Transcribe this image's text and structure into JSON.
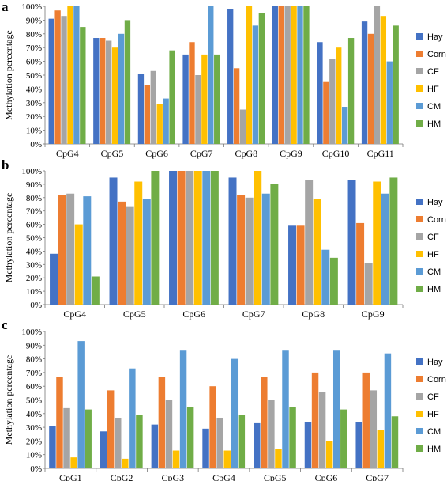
{
  "colors": {
    "Hay": "#4472c4",
    "Corn": "#ed7d31",
    "CF": "#a5a5a5",
    "HF": "#ffc000",
    "CM": "#5b9bd5",
    "HM": "#70ad47"
  },
  "chart_data": [
    {
      "type": "bar",
      "panel_label": "a",
      "ylabel": "Methylation percentage",
      "ylim": [
        0,
        100
      ],
      "yticks": [
        "0%",
        "10%",
        "20%",
        "30%",
        "40%",
        "50%",
        "60%",
        "70%",
        "80%",
        "90%",
        "100%"
      ],
      "categories": [
        "CpG4",
        "CpG5",
        "CpG6",
        "CpG7",
        "CpG8",
        "CpG9",
        "CpG10",
        "CpG11"
      ],
      "legend": {
        "position": "right"
      },
      "series": [
        {
          "name": "Hay",
          "values": [
            91,
            77,
            51,
            65,
            98,
            100,
            74,
            89
          ]
        },
        {
          "name": "Corn",
          "values": [
            97,
            77,
            43,
            74,
            55,
            100,
            45,
            80
          ]
        },
        {
          "name": "CF",
          "values": [
            93,
            75,
            53,
            50,
            25,
            100,
            62,
            100
          ]
        },
        {
          "name": "HF",
          "values": [
            100,
            70,
            29,
            65,
            100,
            100,
            70,
            93
          ]
        },
        {
          "name": "CM",
          "values": [
            100,
            80,
            33,
            100,
            86,
            100,
            27,
            60
          ]
        },
        {
          "name": "HM",
          "values": [
            85,
            90,
            68,
            65,
            95,
            100,
            77,
            86
          ]
        }
      ]
    },
    {
      "type": "bar",
      "panel_label": "b",
      "ylabel": "Methylation percentage",
      "ylim": [
        0,
        100
      ],
      "yticks": [
        "0%",
        "10%",
        "20%",
        "30%",
        "40%",
        "50%",
        "60%",
        "70%",
        "80%",
        "90%",
        "100%"
      ],
      "categories": [
        "CpG4",
        "CpG5",
        "CpG6",
        "CpG7",
        "CpG8",
        "CpG9"
      ],
      "legend": {
        "position": "right"
      },
      "series": [
        {
          "name": "Hay",
          "values": [
            38,
            95,
            100,
            95,
            59,
            93
          ]
        },
        {
          "name": "Corn",
          "values": [
            82,
            77,
            100,
            82,
            59,
            61
          ]
        },
        {
          "name": "CF",
          "values": [
            83,
            73,
            100,
            80,
            93,
            31
          ]
        },
        {
          "name": "HF",
          "values": [
            60,
            92,
            100,
            100,
            79,
            92
          ]
        },
        {
          "name": "CM",
          "values": [
            81,
            79,
            100,
            83,
            41,
            83
          ]
        },
        {
          "name": "HM",
          "values": [
            21,
            100,
            100,
            90,
            35,
            95
          ]
        }
      ]
    },
    {
      "type": "bar",
      "panel_label": "c",
      "ylabel": "Methylation percentage",
      "ylim": [
        0,
        100
      ],
      "yticks": [
        "0%",
        "10%",
        "20%",
        "30%",
        "40%",
        "50%",
        "60%",
        "70%",
        "80%",
        "90%",
        "100%"
      ],
      "categories": [
        "CpG1",
        "CpG2",
        "CpG3",
        "CpG4",
        "CpG5",
        "CpG6",
        "CpG7"
      ],
      "legend": {
        "position": "right"
      },
      "series": [
        {
          "name": "Hay",
          "values": [
            31,
            27,
            32,
            29,
            33,
            34,
            34
          ]
        },
        {
          "name": "Corn",
          "values": [
            67,
            57,
            67,
            60,
            67,
            70,
            70
          ]
        },
        {
          "name": "CF",
          "values": [
            44,
            37,
            50,
            37,
            50,
            56,
            57
          ]
        },
        {
          "name": "HF",
          "values": [
            8,
            7,
            13,
            13,
            14,
            20,
            28
          ]
        },
        {
          "name": "CM",
          "values": [
            93,
            73,
            86,
            80,
            86,
            86,
            84
          ]
        },
        {
          "name": "HM",
          "values": [
            43,
            39,
            45,
            39,
            45,
            43,
            38
          ]
        }
      ]
    }
  ]
}
